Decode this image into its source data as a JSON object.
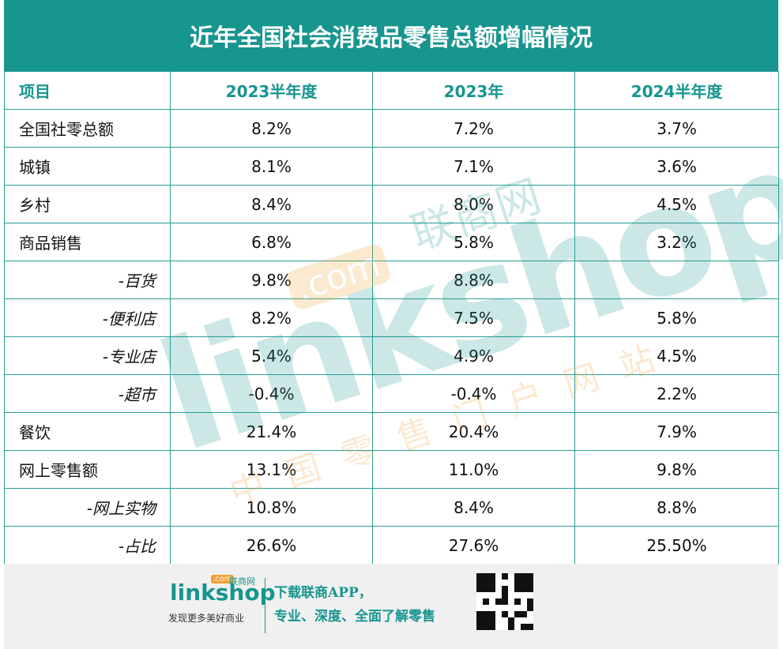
{
  "title": "近年全国社会消费品零售总额增幅情况",
  "table": {
    "header": [
      "项目",
      "2023半年度",
      "2023年",
      "2024半年度"
    ],
    "rows": [
      [
        "全国社零总额",
        "8.2%",
        "7.2%",
        "3.7%"
      ],
      [
        "城镇",
        "8.1%",
        "7.1%",
        "3.6%"
      ],
      [
        "乡村",
        "8.4%",
        "8.0%",
        "4.5%"
      ],
      [
        "商品销售",
        "6.8%",
        "5.8%",
        "3.2%"
      ],
      [
        "-百货",
        "9.8%",
        "8.8%",
        null
      ],
      [
        "-便利店",
        "8.2%",
        "7.5%",
        "5.8%"
      ],
      [
        "-专业店",
        "5.4%",
        "4.9%",
        "4.5%"
      ],
      [
        "-超市",
        "-0.4%",
        "-0.4%",
        "2.2%"
      ],
      [
        "餐饮",
        "21.4%",
        "20.4%",
        "7.9%"
      ],
      [
        "网上零售额",
        "13.1%",
        "11.0%",
        "9.8%"
      ],
      [
        "-网上实物",
        "10.8%",
        "8.4%",
        "8.8%"
      ],
      [
        "-占比",
        "26.6%",
        "27.6%",
        "25.50%"
      ]
    ]
  },
  "watermark": {
    "brand": "linkshop",
    "cn": "联商网",
    "com": ".com",
    "slogan": "中国零售门户网站"
  },
  "footer": {
    "logo": "linkshop",
    "logo_cn": "联商网",
    "logo_com": ".com",
    "tagline": "发现更多美好商业",
    "line1": "下载联商APP，",
    "line2": "专业、深度、全面了解零售"
  }
}
